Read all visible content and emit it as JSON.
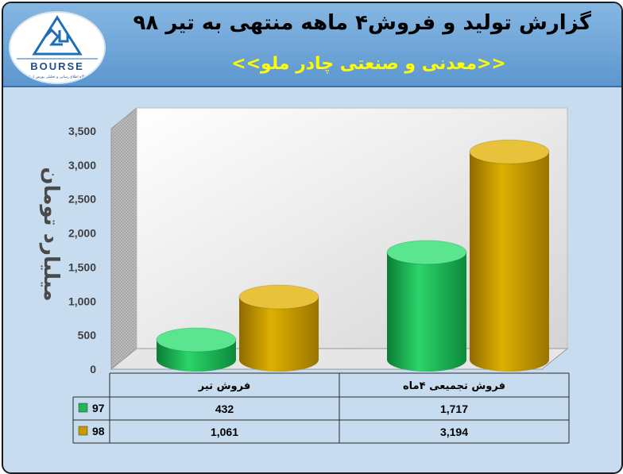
{
  "header": {
    "title": "گزارش تولید و فروش۴ ماهه منتهی به تیر ۹۸",
    "subtitle": "<<معدنی و صنعتی چادر ملو>>",
    "logo_text": "BOURSE",
    "logo_caption": "پایگاه اطلاع رسانی و تحلیلی بورس ایران"
  },
  "chart_data": {
    "type": "bar",
    "style": "3d-cylinder",
    "categories": [
      "فروش تیر",
      "فروش تجمیعی ۴ماه"
    ],
    "series": [
      {
        "name": "97",
        "color": "#21b557",
        "values": [
          432,
          1717
        ]
      },
      {
        "name": "98",
        "color": "#c99a00",
        "values": [
          1061,
          3194
        ]
      }
    ],
    "ylabel": "میلیارد تومان",
    "yticks": [
      "0",
      "500",
      "1,000",
      "1,500",
      "2,000",
      "2,500",
      "3,000",
      "3,500"
    ],
    "ylim": [
      0,
      3500
    ],
    "data_table": true,
    "table_values": [
      [
        "432",
        "1,717"
      ],
      [
        "1,061",
        "3,194"
      ]
    ]
  }
}
